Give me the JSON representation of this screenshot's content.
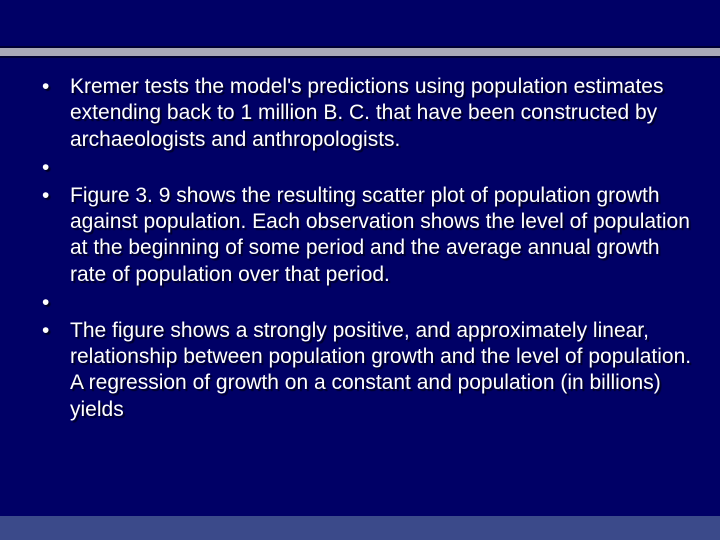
{
  "background_color": "#000066",
  "text_color": "#ffffff",
  "header_band_color": "#a9a9b8",
  "footer_band_color": "#3b4a8a",
  "font_family": "Arial",
  "font_size_pt": 16,
  "text_shadow": "2px 2px 1px rgba(0,0,0,0.65)",
  "bullets": [
    "Kremer tests the model's predictions using population estimates extending back to 1 million B. C. that have been constructed by archaeologists and anthropologists.",
    "",
    "Figure 3. 9 shows the resulting scatter plot of population growth against population. Each observation shows the level of population at the beginning of some period and the average annual growth rate of population over that period.",
    "",
    "The figure shows a strongly positive, and approximately linear, relationship between population growth and the level of population. A regression of growth on a constant and population (in billions) yields"
  ]
}
